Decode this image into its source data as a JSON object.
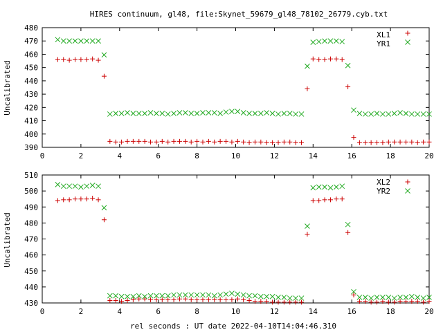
{
  "title": "HIRES continuum, gl48, file:Skynet_59679_gl48_78102_26779.cyb.txt",
  "xlabel": "rel seconds : UT date 2022-04-10T14:04:46.310",
  "colors": {
    "plus": "#cc0000",
    "cross": "#22aa22",
    "axis": "#000000"
  },
  "chart_data": [
    {
      "type": "scatter",
      "ylabel": "Uncalibrated",
      "xlim": [
        0,
        20
      ],
      "ylim": [
        390,
        480
      ],
      "xticks": [
        0,
        2,
        4,
        6,
        8,
        10,
        12,
        14,
        16,
        18,
        20
      ],
      "yticks": [
        390,
        400,
        410,
        420,
        430,
        440,
        450,
        460,
        470,
        480
      ],
      "legend_position": "top-right",
      "series": [
        {
          "name": "XL1",
          "marker": "plus",
          "x": [
            0.8,
            1.1,
            1.4,
            1.7,
            2.0,
            2.3,
            2.6,
            2.9,
            3.2,
            3.5,
            3.8,
            4.1,
            4.4,
            4.7,
            5.0,
            5.3,
            5.6,
            5.9,
            6.2,
            6.5,
            6.8,
            7.1,
            7.4,
            7.7,
            8.0,
            8.3,
            8.6,
            8.9,
            9.2,
            9.5,
            9.8,
            10.1,
            10.4,
            10.7,
            11.0,
            11.3,
            11.6,
            11.9,
            12.2,
            12.5,
            12.8,
            13.1,
            13.4,
            13.7,
            14.0,
            14.3,
            14.6,
            14.9,
            15.2,
            15.5,
            15.8,
            16.1,
            16.4,
            16.7,
            17.0,
            17.3,
            17.6,
            17.9,
            18.2,
            18.5,
            18.8,
            19.1,
            19.4,
            19.7,
            20.0
          ],
          "y": [
            456,
            456,
            455.5,
            456,
            456,
            456,
            456.5,
            455.5,
            443.5,
            394.5,
            394,
            394,
            394.5,
            394.5,
            394.5,
            394.5,
            394,
            394,
            394.5,
            394,
            394.5,
            394.5,
            394.5,
            394,
            394.5,
            394,
            394.5,
            394,
            394.5,
            394.5,
            394,
            394.5,
            394,
            393.5,
            394,
            394,
            393.5,
            393.5,
            393.5,
            394,
            394,
            393.5,
            393.5,
            434,
            456.5,
            456,
            456,
            456.5,
            456.5,
            456,
            435.5,
            397.5,
            393.5,
            393.5,
            393.5,
            393.5,
            393.5,
            394,
            394,
            394,
            394,
            394,
            393.5,
            394,
            394
          ]
        },
        {
          "name": "YR1",
          "marker": "cross",
          "x": [
            0.8,
            1.1,
            1.4,
            1.7,
            2.0,
            2.3,
            2.6,
            2.9,
            3.2,
            3.5,
            3.8,
            4.1,
            4.4,
            4.7,
            5.0,
            5.3,
            5.6,
            5.9,
            6.2,
            6.5,
            6.8,
            7.1,
            7.4,
            7.7,
            8.0,
            8.3,
            8.6,
            8.9,
            9.2,
            9.5,
            9.8,
            10.1,
            10.4,
            10.7,
            11.0,
            11.3,
            11.6,
            11.9,
            12.2,
            12.5,
            12.8,
            13.1,
            13.4,
            13.7,
            14.0,
            14.3,
            14.6,
            14.9,
            15.2,
            15.5,
            15.8,
            16.1,
            16.4,
            16.7,
            17.0,
            17.3,
            17.6,
            17.9,
            18.2,
            18.5,
            18.8,
            19.1,
            19.4,
            19.7,
            20.0
          ],
          "y": [
            471,
            470,
            470,
            470,
            470,
            470,
            470,
            470,
            459.5,
            415,
            415.5,
            415.5,
            416,
            415.5,
            415.5,
            415.5,
            416,
            415.5,
            415.5,
            415,
            415.5,
            416,
            416,
            415.5,
            415.5,
            416,
            416,
            416,
            415.5,
            416.5,
            417,
            417,
            416,
            415.5,
            415.5,
            415.5,
            416,
            415.5,
            415,
            415.5,
            415.5,
            415,
            415,
            451,
            469,
            469.5,
            470,
            470,
            470,
            469.5,
            451.5,
            418,
            415.5,
            415,
            415,
            415.5,
            415,
            415,
            415.5,
            416,
            415.5,
            415,
            415,
            415,
            415
          ]
        }
      ]
    },
    {
      "type": "scatter",
      "ylabel": "Uncalibrated",
      "xlim": [
        0,
        20
      ],
      "ylim": [
        430,
        510
      ],
      "xticks": [
        0,
        2,
        4,
        6,
        8,
        10,
        12,
        14,
        16,
        18,
        20
      ],
      "yticks": [
        430,
        440,
        450,
        460,
        470,
        480,
        490,
        500,
        510
      ],
      "legend_position": "top-right",
      "series": [
        {
          "name": "XL2",
          "marker": "plus",
          "x": [
            0.8,
            1.1,
            1.4,
            1.7,
            2.0,
            2.3,
            2.6,
            2.9,
            3.2,
            3.5,
            3.8,
            4.1,
            4.4,
            4.7,
            5.0,
            5.3,
            5.6,
            5.9,
            6.2,
            6.5,
            6.8,
            7.1,
            7.4,
            7.7,
            8.0,
            8.3,
            8.6,
            8.9,
            9.2,
            9.5,
            9.8,
            10.1,
            10.4,
            10.7,
            11.0,
            11.3,
            11.6,
            11.9,
            12.2,
            12.5,
            12.8,
            13.1,
            13.4,
            13.7,
            14.0,
            14.3,
            14.6,
            14.9,
            15.2,
            15.5,
            15.8,
            16.1,
            16.4,
            16.7,
            17.0,
            17.3,
            17.6,
            17.9,
            18.2,
            18.5,
            18.8,
            19.1,
            19.4,
            19.7,
            20.0
          ],
          "y": [
            494,
            494.5,
            494.5,
            495,
            495,
            495,
            495.5,
            494.5,
            482,
            431.5,
            431.5,
            431,
            431.5,
            432,
            432.5,
            432.5,
            432,
            432,
            432,
            432,
            432,
            432.5,
            432.5,
            432,
            432,
            432,
            432,
            432,
            432,
            432,
            432,
            432.5,
            432,
            431.5,
            431,
            431,
            431,
            430.5,
            430.5,
            430.5,
            430.5,
            430.5,
            430.5,
            473,
            494,
            494,
            494.5,
            494.5,
            495,
            495,
            474,
            435,
            431,
            431,
            430.5,
            430.5,
            431,
            430.5,
            430.5,
            431,
            431,
            431,
            431,
            430.5,
            431
          ]
        },
        {
          "name": "YR2",
          "marker": "cross",
          "x": [
            0.8,
            1.1,
            1.4,
            1.7,
            2.0,
            2.3,
            2.6,
            2.9,
            3.2,
            3.5,
            3.8,
            4.1,
            4.4,
            4.7,
            5.0,
            5.3,
            5.6,
            5.9,
            6.2,
            6.5,
            6.8,
            7.1,
            7.4,
            7.7,
            8.0,
            8.3,
            8.6,
            8.9,
            9.2,
            9.5,
            9.8,
            10.1,
            10.4,
            10.7,
            11.0,
            11.3,
            11.6,
            11.9,
            12.2,
            12.5,
            12.8,
            13.1,
            13.4,
            13.7,
            14.0,
            14.3,
            14.6,
            14.9,
            15.2,
            15.5,
            15.8,
            16.1,
            16.4,
            16.7,
            17.0,
            17.3,
            17.6,
            17.9,
            18.2,
            18.5,
            18.8,
            19.1,
            19.4,
            19.7,
            20.0
          ],
          "y": [
            504,
            503,
            503,
            503,
            502.5,
            503,
            503.5,
            503,
            489.5,
            434.5,
            434.5,
            434,
            434,
            434,
            434.5,
            434,
            434.5,
            434.5,
            434.5,
            434.5,
            435,
            435,
            435,
            435,
            435,
            435,
            435,
            434.5,
            435,
            435.5,
            436,
            435.5,
            435,
            434.5,
            434.5,
            434,
            434,
            434,
            433.5,
            433.5,
            433,
            433,
            433,
            478,
            502,
            502.5,
            502.5,
            502,
            502.5,
            503,
            479,
            437,
            433.5,
            433.5,
            433,
            433.5,
            433.5,
            433.5,
            433,
            433.5,
            433.5,
            434,
            433.5,
            433,
            433.5
          ]
        }
      ]
    }
  ]
}
